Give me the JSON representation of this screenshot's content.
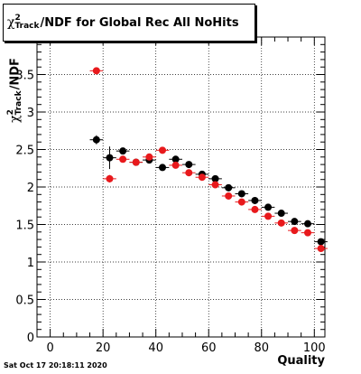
{
  "title": {
    "chi": "χ",
    "sup": "2",
    "sub": "Track",
    "rest": "/NDF for Global Rec All NoHits"
  },
  "ylabel": {
    "chi": "χ",
    "sup": "2",
    "sub": "Track",
    "rest": "/NDF"
  },
  "xlabel": "Quality",
  "footer": "Sat Oct 17 20:18:11 2020",
  "colors": {
    "series_black": "#000000",
    "series_red": "#e8191c",
    "grid": "#000000"
  },
  "chart_data": {
    "type": "scatter",
    "xlabel": "Quality",
    "ylabel": "χ²_Track/NDF",
    "xlim": [
      -5,
      104
    ],
    "ylim": [
      0,
      4.0
    ],
    "grid": true,
    "xticks": [
      0,
      20,
      40,
      60,
      80,
      100
    ],
    "yticks": [
      0,
      0.5,
      1,
      1.5,
      2,
      2.5,
      3,
      3.5
    ],
    "ytick_labels": [
      "0",
      "0.5",
      "1",
      "1.5",
      "2",
      "2.5",
      "3",
      "3.5"
    ],
    "x_error_half_width": 2.5,
    "series": [
      {
        "color": "black",
        "points": [
          {
            "x": 17.5,
            "y": 2.63,
            "yerr": 0.06
          },
          {
            "x": 22.5,
            "y": 2.39,
            "yerr": 0.15
          },
          {
            "x": 27.5,
            "y": 2.48,
            "yerr": 0.04
          },
          {
            "x": 32.5,
            "y": 2.33,
            "yerr": 0.03
          },
          {
            "x": 37.5,
            "y": 2.36,
            "yerr": 0.03
          },
          {
            "x": 42.5,
            "y": 2.26,
            "yerr": 0.02
          },
          {
            "x": 47.5,
            "y": 2.37,
            "yerr": 0.02
          },
          {
            "x": 52.5,
            "y": 2.3,
            "yerr": 0.02
          },
          {
            "x": 57.5,
            "y": 2.17,
            "yerr": 0.02
          },
          {
            "x": 62.5,
            "y": 2.11,
            "yerr": 0.02
          },
          {
            "x": 67.5,
            "y": 1.99,
            "yerr": 0.02
          },
          {
            "x": 72.5,
            "y": 1.91,
            "yerr": 0.02
          },
          {
            "x": 77.5,
            "y": 1.82,
            "yerr": 0.02
          },
          {
            "x": 82.5,
            "y": 1.73,
            "yerr": 0.02
          },
          {
            "x": 87.5,
            "y": 1.65,
            "yerr": 0.02
          },
          {
            "x": 92.5,
            "y": 1.54,
            "yerr": 0.02
          },
          {
            "x": 97.5,
            "y": 1.51,
            "yerr": 0.02
          },
          {
            "x": 102.5,
            "y": 1.27,
            "yerr": 0.02
          }
        ]
      },
      {
        "color": "red",
        "points": [
          {
            "x": 17.5,
            "y": 3.55,
            "yerr": 0.02
          },
          {
            "x": 22.5,
            "y": 2.11,
            "yerr": 0.05
          },
          {
            "x": 27.5,
            "y": 2.37,
            "yerr": 0.03
          },
          {
            "x": 32.5,
            "y": 2.33,
            "yerr": 0.02
          },
          {
            "x": 37.5,
            "y": 2.4,
            "yerr": 0.02
          },
          {
            "x": 42.5,
            "y": 2.49,
            "yerr": 0.02
          },
          {
            "x": 47.5,
            "y": 2.29,
            "yerr": 0.02
          },
          {
            "x": 52.5,
            "y": 2.19,
            "yerr": 0.02
          },
          {
            "x": 57.5,
            "y": 2.13,
            "yerr": 0.02
          },
          {
            "x": 62.5,
            "y": 2.03,
            "yerr": 0.02
          },
          {
            "x": 67.5,
            "y": 1.88,
            "yerr": 0.02
          },
          {
            "x": 72.5,
            "y": 1.8,
            "yerr": 0.02
          },
          {
            "x": 77.5,
            "y": 1.7,
            "yerr": 0.02
          },
          {
            "x": 82.5,
            "y": 1.61,
            "yerr": 0.02
          },
          {
            "x": 87.5,
            "y": 1.52,
            "yerr": 0.02
          },
          {
            "x": 92.5,
            "y": 1.42,
            "yerr": 0.02
          },
          {
            "x": 97.5,
            "y": 1.39,
            "yerr": 0.02
          },
          {
            "x": 102.5,
            "y": 1.18,
            "yerr": 0.02
          }
        ]
      }
    ]
  }
}
